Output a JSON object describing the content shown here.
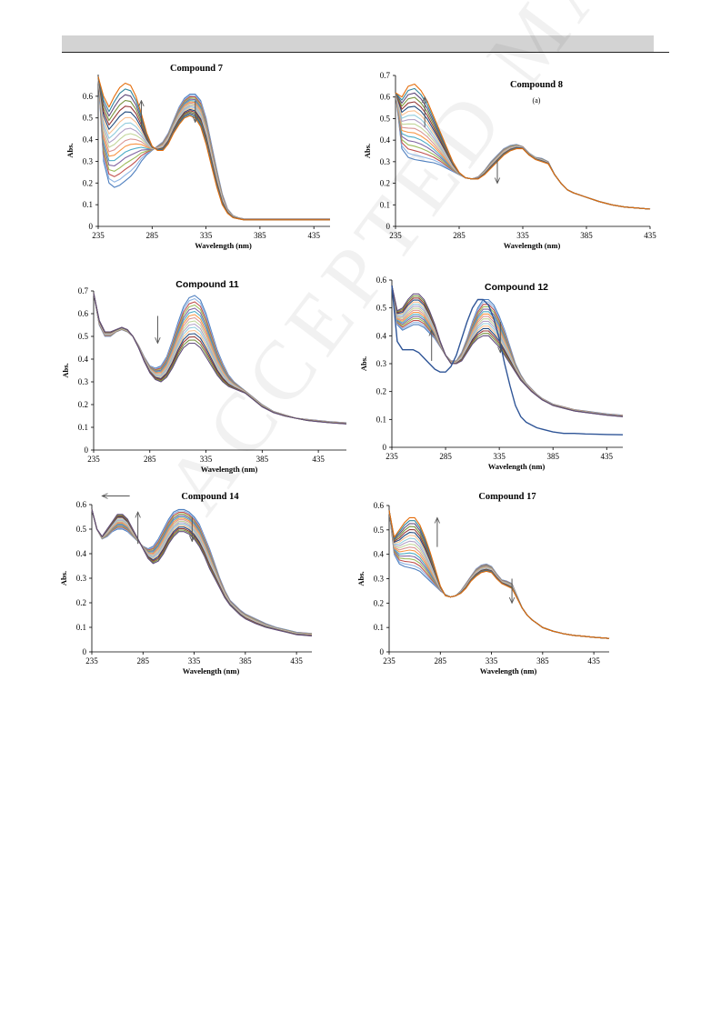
{
  "watermark": "ACCEPTED MANUSCRIPT",
  "chart_data": [
    {
      "type": "line",
      "title": "Compound 7",
      "subtitle": "",
      "xlabel": "Wavelength (nm)",
      "ylabel": "Abs.",
      "xlim": [
        235,
        450
      ],
      "ylim": [
        0,
        0.7
      ],
      "xticks": [
        235,
        285,
        335,
        385,
        435
      ],
      "yticks": [
        0,
        0.1,
        0.2,
        0.3,
        0.4,
        0.5,
        0.6
      ],
      "series_count": 18,
      "x": [
        235,
        240,
        245,
        250,
        255,
        260,
        265,
        270,
        275,
        280,
        285,
        290,
        295,
        300,
        305,
        310,
        315,
        320,
        325,
        330,
        335,
        340,
        345,
        350,
        355,
        360,
        365,
        370,
        375,
        380,
        385,
        395,
        405,
        415,
        425,
        435,
        450
      ],
      "series_first": [
        0.69,
        0.3,
        0.2,
        0.18,
        0.19,
        0.21,
        0.23,
        0.26,
        0.3,
        0.33,
        0.35,
        0.37,
        0.39,
        0.43,
        0.49,
        0.55,
        0.59,
        0.61,
        0.61,
        0.58,
        0.5,
        0.38,
        0.26,
        0.15,
        0.08,
        0.05,
        0.04,
        0.035,
        0.035,
        0.035,
        0.035,
        0.035,
        0.035,
        0.035,
        0.035,
        0.035,
        0.035
      ],
      "series_last": [
        0.69,
        0.6,
        0.55,
        0.6,
        0.64,
        0.66,
        0.65,
        0.6,
        0.52,
        0.43,
        0.37,
        0.35,
        0.35,
        0.38,
        0.43,
        0.47,
        0.5,
        0.51,
        0.5,
        0.46,
        0.38,
        0.28,
        0.18,
        0.1,
        0.06,
        0.04,
        0.035,
        0.03,
        0.03,
        0.03,
        0.03,
        0.03,
        0.03,
        0.03,
        0.03,
        0.03,
        0.03
      ],
      "arrows": [
        {
          "x": 275,
          "y_from": 0.46,
          "y_to": 0.58
        },
        {
          "x": 325,
          "y_from": 0.58,
          "y_to": 0.48
        }
      ]
    },
    {
      "type": "line",
      "title": "Compound 8",
      "subtitle": "(a)",
      "xlabel": "Wavelength (nm)",
      "ylabel": "Abs.",
      "xlim": [
        235,
        435
      ],
      "ylim": [
        0,
        0.7
      ],
      "xticks": [
        235,
        285,
        335,
        385,
        435
      ],
      "yticks": [
        0,
        0.1,
        0.2,
        0.3,
        0.4,
        0.5,
        0.6,
        0.7
      ],
      "series_count": 18,
      "x": [
        235,
        240,
        245,
        250,
        255,
        260,
        265,
        270,
        275,
        280,
        285,
        290,
        295,
        300,
        305,
        310,
        315,
        320,
        325,
        330,
        335,
        340,
        345,
        350,
        355,
        360,
        365,
        370,
        375,
        380,
        385,
        395,
        405,
        415,
        425,
        435
      ],
      "series_first": [
        0.62,
        0.36,
        0.32,
        0.31,
        0.305,
        0.3,
        0.295,
        0.285,
        0.27,
        0.255,
        0.24,
        0.225,
        0.22,
        0.23,
        0.26,
        0.3,
        0.33,
        0.36,
        0.375,
        0.38,
        0.37,
        0.34,
        0.32,
        0.315,
        0.3,
        0.24,
        0.2,
        0.17,
        0.155,
        0.145,
        0.135,
        0.115,
        0.1,
        0.09,
        0.085,
        0.08
      ],
      "series_last": [
        0.62,
        0.6,
        0.65,
        0.66,
        0.63,
        0.58,
        0.51,
        0.44,
        0.37,
        0.3,
        0.25,
        0.225,
        0.22,
        0.22,
        0.24,
        0.27,
        0.3,
        0.33,
        0.35,
        0.36,
        0.36,
        0.33,
        0.31,
        0.3,
        0.29,
        0.24,
        0.2,
        0.17,
        0.155,
        0.145,
        0.135,
        0.115,
        0.1,
        0.09,
        0.085,
        0.08
      ],
      "arrows": [
        {
          "x": 258,
          "y_from": 0.46,
          "y_to": 0.6
        },
        {
          "x": 315,
          "y_from": 0.31,
          "y_to": 0.2
        }
      ]
    },
    {
      "type": "line",
      "title": "Compound 11",
      "subtitle": "",
      "xlabel": "Wavelength (nm)",
      "ylabel": "Abs.",
      "xlim": [
        235,
        460
      ],
      "ylim": [
        0,
        0.7
      ],
      "xticks": [
        235,
        285,
        335,
        385,
        435
      ],
      "yticks": [
        0,
        0.1,
        0.2,
        0.3,
        0.4,
        0.5,
        0.6,
        0.7
      ],
      "series_count": 16,
      "x": [
        235,
        240,
        245,
        250,
        255,
        260,
        265,
        270,
        275,
        280,
        285,
        290,
        295,
        300,
        305,
        310,
        315,
        320,
        325,
        330,
        335,
        340,
        345,
        350,
        355,
        360,
        365,
        370,
        375,
        380,
        385,
        395,
        405,
        415,
        425,
        435,
        445,
        460
      ],
      "series_first": [
        0.69,
        0.55,
        0.5,
        0.5,
        0.52,
        0.53,
        0.52,
        0.5,
        0.46,
        0.41,
        0.37,
        0.36,
        0.37,
        0.41,
        0.48,
        0.56,
        0.63,
        0.67,
        0.68,
        0.66,
        0.6,
        0.52,
        0.44,
        0.38,
        0.33,
        0.3,
        0.28,
        0.26,
        0.24,
        0.22,
        0.2,
        0.17,
        0.155,
        0.14,
        0.135,
        0.13,
        0.125,
        0.12
      ],
      "series_last": [
        0.69,
        0.57,
        0.52,
        0.52,
        0.53,
        0.54,
        0.53,
        0.5,
        0.45,
        0.39,
        0.34,
        0.31,
        0.3,
        0.32,
        0.36,
        0.41,
        0.45,
        0.47,
        0.47,
        0.45,
        0.41,
        0.37,
        0.33,
        0.3,
        0.28,
        0.27,
        0.26,
        0.25,
        0.23,
        0.21,
        0.19,
        0.165,
        0.15,
        0.14,
        0.13,
        0.125,
        0.12,
        0.115
      ],
      "arrows": [
        {
          "x": 292,
          "y_from": 0.59,
          "y_to": 0.47
        }
      ]
    },
    {
      "type": "line",
      "title": "Compound 12",
      "subtitle": "",
      "xlabel": "Wavelength (nm)",
      "ylabel": "Abs.",
      "xlim": [
        235,
        450
      ],
      "ylim": [
        0,
        0.6
      ],
      "xticks": [
        235,
        285,
        335,
        385,
        435
      ],
      "yticks": [
        0,
        0.1,
        0.2,
        0.3,
        0.4,
        0.5,
        0.6
      ],
      "series_count": 16,
      "x": [
        235,
        240,
        245,
        250,
        255,
        260,
        265,
        270,
        275,
        280,
        285,
        290,
        295,
        300,
        305,
        310,
        315,
        320,
        325,
        330,
        335,
        340,
        345,
        350,
        355,
        360,
        365,
        370,
        375,
        380,
        385,
        395,
        405,
        415,
        425,
        435,
        450
      ],
      "series_first": [
        0.58,
        0.44,
        0.42,
        0.43,
        0.44,
        0.44,
        0.43,
        0.41,
        0.39,
        0.36,
        0.33,
        0.31,
        0.31,
        0.34,
        0.39,
        0.45,
        0.5,
        0.53,
        0.53,
        0.51,
        0.47,
        0.42,
        0.36,
        0.3,
        0.26,
        0.23,
        0.21,
        0.19,
        0.175,
        0.165,
        0.155,
        0.145,
        0.135,
        0.13,
        0.125,
        0.12,
        0.115
      ],
      "series_last": [
        0.58,
        0.49,
        0.5,
        0.53,
        0.55,
        0.55,
        0.53,
        0.49,
        0.44,
        0.38,
        0.33,
        0.3,
        0.3,
        0.31,
        0.34,
        0.37,
        0.39,
        0.4,
        0.4,
        0.38,
        0.36,
        0.33,
        0.3,
        0.27,
        0.24,
        0.22,
        0.2,
        0.185,
        0.17,
        0.16,
        0.15,
        0.14,
        0.13,
        0.125,
        0.12,
        0.115,
        0.11
      ],
      "extra": [
        0.58,
        0.38,
        0.35,
        0.35,
        0.35,
        0.34,
        0.32,
        0.3,
        0.28,
        0.27,
        0.27,
        0.29,
        0.33,
        0.39,
        0.45,
        0.5,
        0.53,
        0.53,
        0.51,
        0.46,
        0.39,
        0.3,
        0.22,
        0.15,
        0.11,
        0.09,
        0.08,
        0.07,
        0.065,
        0.06,
        0.055,
        0.05,
        0.05,
        0.048,
        0.047,
        0.046,
        0.045
      ],
      "arrows": [
        {
          "x": 272,
          "y_from": 0.31,
          "y_to": 0.42
        },
        {
          "x": 336,
          "y_from": 0.45,
          "y_to": 0.34
        }
      ]
    },
    {
      "type": "line",
      "title": "Compound 14",
      "subtitle": "",
      "xlabel": "Wavelength (nm)",
      "ylabel": "Abs.",
      "xlim": [
        235,
        450
      ],
      "ylim": [
        0,
        0.6
      ],
      "xticks": [
        235,
        285,
        335,
        385,
        435
      ],
      "yticks": [
        0,
        0.1,
        0.2,
        0.3,
        0.4,
        0.5,
        0.6
      ],
      "series_count": 16,
      "x": [
        235,
        240,
        245,
        250,
        255,
        260,
        265,
        270,
        275,
        280,
        285,
        290,
        295,
        300,
        305,
        310,
        315,
        320,
        325,
        330,
        335,
        340,
        345,
        350,
        355,
        360,
        365,
        370,
        375,
        380,
        385,
        395,
        405,
        415,
        425,
        435,
        450
      ],
      "series_first": [
        0.58,
        0.5,
        0.46,
        0.47,
        0.49,
        0.5,
        0.5,
        0.49,
        0.47,
        0.45,
        0.43,
        0.42,
        0.43,
        0.46,
        0.5,
        0.54,
        0.57,
        0.58,
        0.58,
        0.57,
        0.55,
        0.52,
        0.47,
        0.42,
        0.36,
        0.3,
        0.25,
        0.21,
        0.19,
        0.17,
        0.155,
        0.135,
        0.115,
        0.1,
        0.09,
        0.08,
        0.075
      ],
      "series_last": [
        0.58,
        0.5,
        0.47,
        0.5,
        0.53,
        0.56,
        0.56,
        0.54,
        0.5,
        0.46,
        0.42,
        0.38,
        0.36,
        0.37,
        0.4,
        0.44,
        0.47,
        0.49,
        0.49,
        0.48,
        0.46,
        0.43,
        0.39,
        0.34,
        0.3,
        0.26,
        0.22,
        0.19,
        0.17,
        0.15,
        0.135,
        0.115,
        0.1,
        0.09,
        0.08,
        0.07,
        0.065
      ],
      "arrows": [
        {
          "x": 280,
          "y_from": 0.44,
          "y_to": 0.57
        },
        {
          "x": 333,
          "y_from": 0.55,
          "y_to": 0.45
        }
      ],
      "shift_arrow": {
        "x_from": 272,
        "x_to": 245,
        "y": 0.635
      }
    },
    {
      "type": "line",
      "title": "Compound 17",
      "subtitle": "",
      "xlabel": "Wavelength (nm)",
      "ylabel": "Abs.",
      "xlim": [
        235,
        450
      ],
      "ylim": [
        0,
        0.6
      ],
      "xticks": [
        235,
        285,
        335,
        385,
        435
      ],
      "yticks": [
        0,
        0.1,
        0.2,
        0.3,
        0.4,
        0.5,
        0.6
      ],
      "series_count": 18,
      "x": [
        235,
        240,
        245,
        250,
        255,
        260,
        265,
        270,
        275,
        280,
        285,
        290,
        295,
        300,
        305,
        310,
        315,
        320,
        325,
        330,
        335,
        340,
        345,
        350,
        355,
        360,
        365,
        370,
        375,
        380,
        385,
        395,
        405,
        415,
        425,
        435,
        450
      ],
      "series_first": [
        0.58,
        0.4,
        0.36,
        0.35,
        0.345,
        0.34,
        0.33,
        0.31,
        0.29,
        0.27,
        0.25,
        0.235,
        0.225,
        0.23,
        0.25,
        0.28,
        0.31,
        0.34,
        0.355,
        0.36,
        0.35,
        0.32,
        0.295,
        0.29,
        0.28,
        0.23,
        0.18,
        0.15,
        0.13,
        0.115,
        0.1,
        0.085,
        0.075,
        0.068,
        0.064,
        0.06,
        0.055
      ],
      "series_last": [
        0.58,
        0.47,
        0.5,
        0.53,
        0.55,
        0.55,
        0.52,
        0.47,
        0.41,
        0.34,
        0.27,
        0.23,
        0.225,
        0.23,
        0.24,
        0.26,
        0.29,
        0.31,
        0.325,
        0.33,
        0.325,
        0.3,
        0.28,
        0.27,
        0.26,
        0.22,
        0.18,
        0.15,
        0.13,
        0.115,
        0.1,
        0.085,
        0.075,
        0.068,
        0.064,
        0.06,
        0.055
      ],
      "arrows": [
        {
          "x": 282,
          "y_from": 0.43,
          "y_to": 0.55
        },
        {
          "x": 355,
          "y_from": 0.3,
          "y_to": 0.2
        }
      ]
    }
  ]
}
